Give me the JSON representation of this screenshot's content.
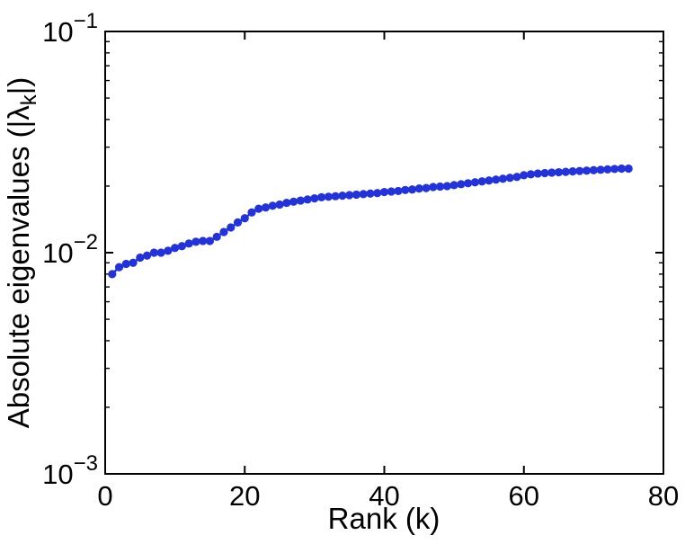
{
  "chart_data": {
    "type": "line",
    "title": "",
    "xlabel": "Rank (k)",
    "ylabel": {
      "prefix": "Absolute eigenvalues (|λ",
      "subscript": "k",
      "suffix": "|)"
    },
    "x_axis": {
      "min": 0,
      "max": 80,
      "ticks": [
        0,
        20,
        40,
        60,
        80
      ]
    },
    "y_axis": {
      "scale": "log10",
      "min_exp": -3,
      "max_exp": -1,
      "tick_base": "10",
      "tick_exponents": [
        -3,
        -2,
        -1
      ],
      "tick_exponent_labels": [
        "−3",
        "−2",
        "−1"
      ]
    },
    "grid": "off",
    "legend": "none",
    "colors": {
      "background": "#ffffff",
      "axis": "#000000",
      "series": "#2433d6"
    },
    "series": [
      {
        "name": "absolute-eigenvalues",
        "marker": "circle",
        "color": "#2433d6",
        "x": [
          1,
          2,
          3,
          4,
          5,
          6,
          7,
          8,
          9,
          10,
          11,
          12,
          13,
          14,
          15,
          16,
          17,
          18,
          19,
          20,
          21,
          22,
          23,
          24,
          25,
          26,
          27,
          28,
          29,
          30,
          31,
          32,
          33,
          34,
          35,
          36,
          37,
          38,
          39,
          40,
          41,
          42,
          43,
          44,
          45,
          46,
          47,
          48,
          49,
          50,
          51,
          52,
          53,
          54,
          55,
          56,
          57,
          58,
          59,
          60,
          61,
          62,
          63,
          64,
          65,
          66,
          67,
          68,
          69,
          70,
          71,
          72,
          73,
          74,
          75
        ],
        "y": [
          0.008,
          0.0086,
          0.0089,
          0.009,
          0.0095,
          0.0097,
          0.01,
          0.01,
          0.0102,
          0.0105,
          0.0107,
          0.011,
          0.0112,
          0.0113,
          0.0113,
          0.0118,
          0.0124,
          0.013,
          0.0137,
          0.0143,
          0.0152,
          0.0158,
          0.016,
          0.0163,
          0.0165,
          0.0168,
          0.017,
          0.0172,
          0.0174,
          0.0176,
          0.0178,
          0.0179,
          0.018,
          0.0181,
          0.0182,
          0.0183,
          0.0184,
          0.0185,
          0.0186,
          0.0188,
          0.0189,
          0.019,
          0.0192,
          0.0193,
          0.0195,
          0.0196,
          0.0198,
          0.0199,
          0.02,
          0.0202,
          0.0204,
          0.0206,
          0.0208,
          0.021,
          0.0212,
          0.0214,
          0.0216,
          0.0218,
          0.022,
          0.0224,
          0.0226,
          0.0228,
          0.0229,
          0.023,
          0.0231,
          0.0232,
          0.0233,
          0.0234,
          0.0235,
          0.0236,
          0.0237,
          0.0238,
          0.0239,
          0.024,
          0.024
        ]
      }
    ]
  }
}
